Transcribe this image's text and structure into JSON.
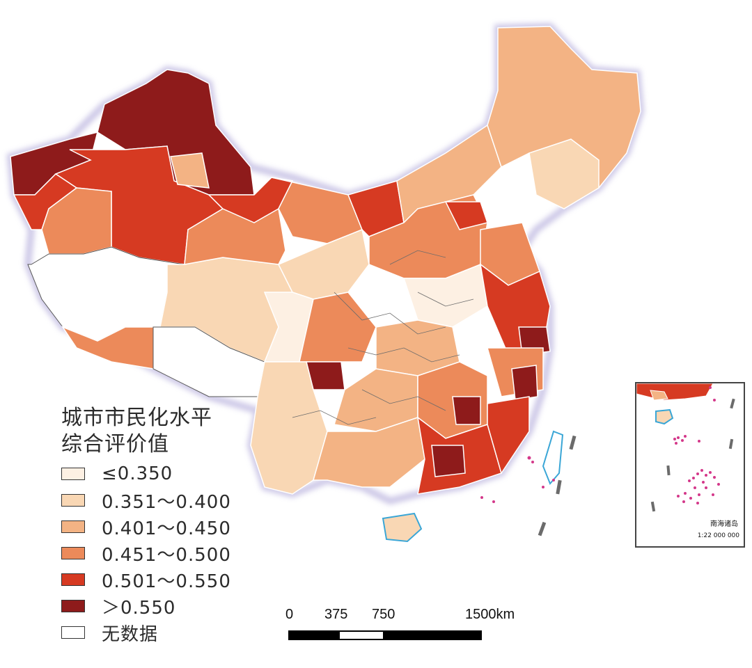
{
  "legend": {
    "title_line1": "城市市民化水平",
    "title_line2": "综合评价值",
    "items": [
      {
        "label": "≤0.350",
        "color": "#fdf0e3"
      },
      {
        "label": "0.351～0.400",
        "color": "#f9d7b4"
      },
      {
        "label": "0.401～0.450",
        "color": "#f3b384"
      },
      {
        "label": "0.451～0.500",
        "color": "#ec8a5a"
      },
      {
        "label": "0.501～0.550",
        "color": "#d63a22"
      },
      {
        "label": "＞0.550",
        "color": "#8e1b1b"
      },
      {
        "label": "无数据",
        "color": "#ffffff"
      }
    ]
  },
  "scale_bar": {
    "ticks": [
      "0",
      "375",
      "750",
      "1500km"
    ]
  },
  "inset": {
    "name": "南海诸岛",
    "scale": "1:22 000 000"
  },
  "colors": {
    "border": "#555555",
    "coast_glow": "#c9c2e6",
    "island_dots": "#d4388a",
    "taiwan": "#3aa6d6"
  }
}
